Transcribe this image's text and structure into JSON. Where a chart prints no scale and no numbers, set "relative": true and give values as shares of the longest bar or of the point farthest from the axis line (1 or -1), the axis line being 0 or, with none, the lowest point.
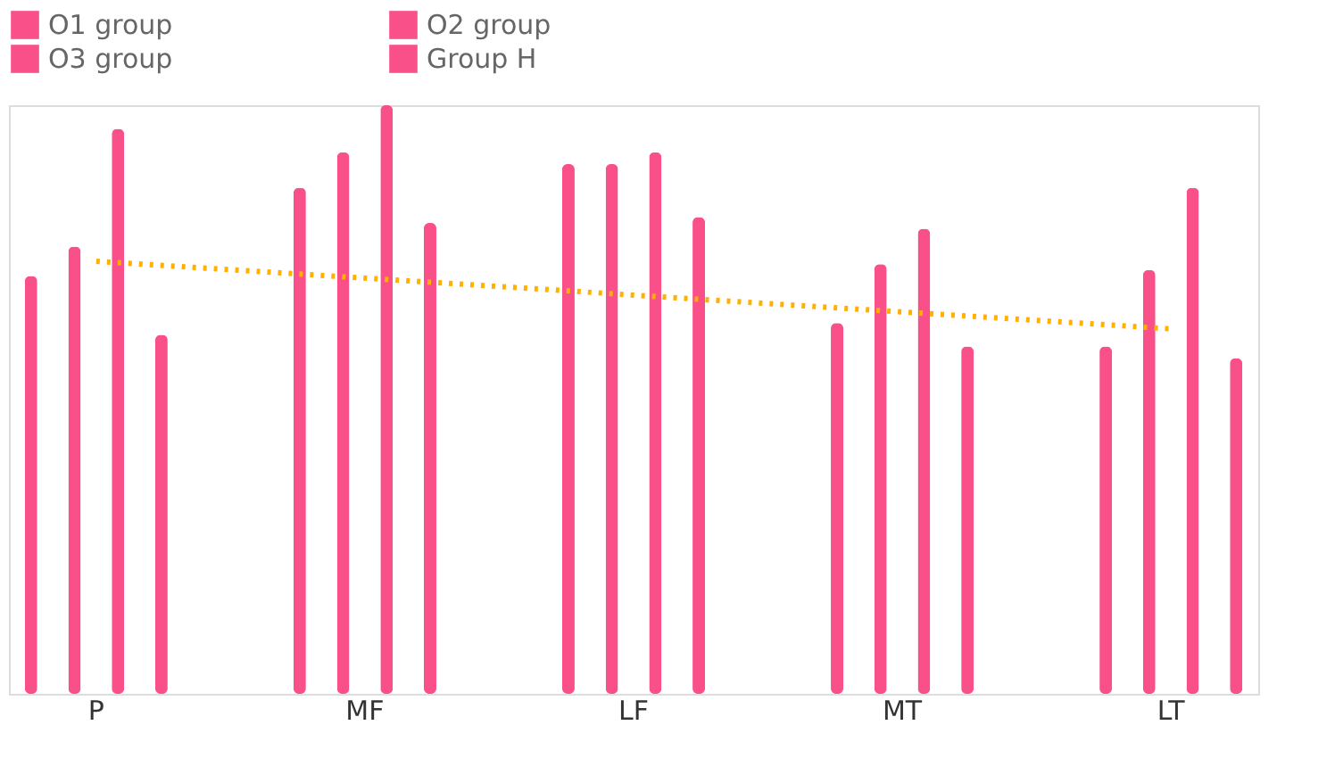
{
  "chart_data": {
    "type": "bar",
    "relative": true,
    "categories": [
      "P",
      "MF",
      "LF",
      "MT",
      "LT"
    ],
    "legend": "top",
    "grid": false,
    "series": [
      {
        "name": "O1 group",
        "color": "#f9508a",
        "values": [
          0.71,
          0.86,
          0.9,
          0.63,
          0.59
        ]
      },
      {
        "name": "O2 group",
        "color": "#f9508a",
        "values": [
          0.76,
          0.92,
          0.9,
          0.73,
          0.72
        ]
      },
      {
        "name": "O3 group",
        "color": "#f9508a",
        "values": [
          0.96,
          1.0,
          0.92,
          0.79,
          0.86
        ]
      },
      {
        "name": "Group H",
        "color": "#f9508a",
        "values": [
          0.61,
          0.8,
          0.81,
          0.59,
          0.57
        ]
      },
      {
        "type": "line",
        "color": "#ffb000",
        "line_style": "dotted",
        "x": [
          "P",
          "LT"
        ],
        "values": [
          0.735,
          0.62
        ]
      }
    ]
  }
}
